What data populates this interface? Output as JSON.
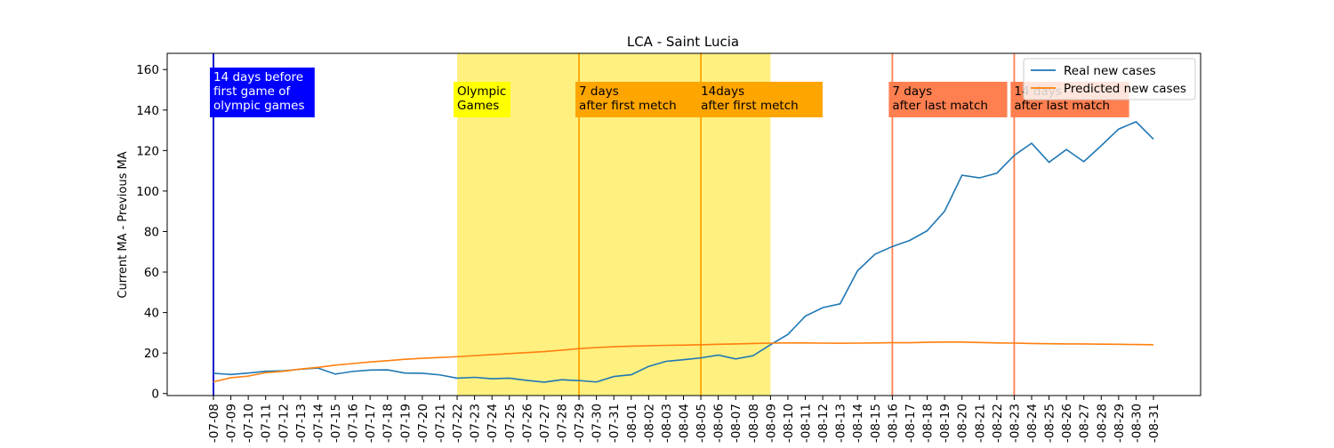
{
  "chart_data": {
    "type": "line",
    "title": "LCA - Saint Lucia",
    "ylabel": "Current MA - Previous MA",
    "xlabel": "",
    "ylim": [
      -1,
      168
    ],
    "yticks": [
      0,
      20,
      40,
      60,
      80,
      100,
      120,
      140,
      160
    ],
    "x": [
      "-07-08",
      "-07-09",
      "-07-10",
      "-07-11",
      "-07-12",
      "-07-13",
      "-07-14",
      "-07-15",
      "-07-16",
      "-07-17",
      "-07-18",
      "-07-19",
      "-07-20",
      "-07-21",
      "-07-22",
      "-07-23",
      "-07-24",
      "-07-25",
      "-07-26",
      "-07-27",
      "-07-28",
      "-07-29",
      "-07-30",
      "-07-31",
      "-08-01",
      "-08-02",
      "-08-03",
      "-08-04",
      "-08-05",
      "-08-06",
      "-08-07",
      "-08-08",
      "-08-09",
      "-08-10",
      "-08-11",
      "-08-12",
      "-08-13",
      "-08-14",
      "-08-15",
      "-08-16",
      "-08-17",
      "-08-18",
      "-08-19",
      "-08-20",
      "-08-21",
      "-08-22",
      "-08-23",
      "-08-24",
      "-08-25",
      "-08-26",
      "-08-27",
      "-08-28",
      "-08-29",
      "-08-30",
      "-08-31"
    ],
    "series": [
      {
        "name": "Real new cases",
        "color": "#1f77b4",
        "values": [
          10,
          9.4,
          10.1,
          11,
          11.2,
          12,
          12.6,
          9.6,
          10.9,
          11.6,
          11.7,
          10.1,
          10,
          9.2,
          7.6,
          8,
          7.3,
          7.6,
          6.5,
          5.6,
          6.8,
          6.4,
          5.7,
          8.4,
          9.3,
          13.4,
          15.9,
          16.7,
          17.6,
          19,
          17.1,
          18.7,
          24.1,
          29.2,
          38.2,
          42.4,
          44.3,
          60.6,
          68.8,
          72.6,
          75.6,
          80.4,
          90,
          107.8,
          106.5,
          108.8,
          117.6,
          123.6,
          114.2,
          120.5,
          114.5,
          122.4,
          130.6,
          134.2,
          125.6
        ]
      },
      {
        "name": "Predicted new cases",
        "color": "#ff7f0e",
        "values": [
          5.8,
          7.8,
          8.6,
          10.3,
          11,
          12.1,
          12.9,
          14,
          14.8,
          15.6,
          16.2,
          16.9,
          17.4,
          17.8,
          18.2,
          18.7,
          19.2,
          19.7,
          20.2,
          20.7,
          21.4,
          22.2,
          22.7,
          23.1,
          23.4,
          23.6,
          23.8,
          23.9,
          24.1,
          24.3,
          24.5,
          24.7,
          24.9,
          25,
          25,
          24.9,
          24.8,
          24.9,
          25,
          25.1,
          25.1,
          25.3,
          25.4,
          25.4,
          25.2,
          25,
          24.9,
          24.7,
          24.6,
          24.5,
          24.5,
          24.4,
          24.3,
          24.2,
          24.1
        ]
      }
    ],
    "shaded_region": {
      "from": "-07-22",
      "to": "-08-09",
      "color": "#fff080"
    },
    "vlines": [
      {
        "at": "-07-08",
        "color": "#0000cc"
      },
      {
        "at": "-07-29",
        "color": "#ffa500"
      },
      {
        "at": "-08-05",
        "color": "#ffa500"
      },
      {
        "at": "-08-16",
        "color": "#ff7f50"
      },
      {
        "at": "-08-23",
        "color": "#ff7f50"
      }
    ],
    "annotations": [
      {
        "at": "-07-08",
        "lines": [
          "14 days before",
          "first game of",
          "olympic games"
        ],
        "bg": "#0000ff",
        "fg": "#ffffff"
      },
      {
        "at": "-07-22",
        "lines": [
          "Olympic",
          "Games"
        ],
        "bg": "#ffff00",
        "fg": "#000000"
      },
      {
        "at": "-07-29",
        "lines": [
          "7 days",
          "after first metch"
        ],
        "bg": "#ffa500",
        "fg": "#000000"
      },
      {
        "at": "-08-05",
        "lines": [
          "14days",
          "after first metch"
        ],
        "bg": "#ffa500",
        "fg": "#000000"
      },
      {
        "at": "-08-16",
        "lines": [
          "7 days",
          "after last match"
        ],
        "bg": "#ff7f50",
        "fg": "#000000"
      },
      {
        "at": "-08-23",
        "lines": [
          "14 days",
          "after last match"
        ],
        "bg": "#ff7f50",
        "fg": "#000000"
      }
    ],
    "legend": {
      "placement": "top-right",
      "entries": [
        "Real new cases",
        "Predicted new cases"
      ]
    }
  }
}
